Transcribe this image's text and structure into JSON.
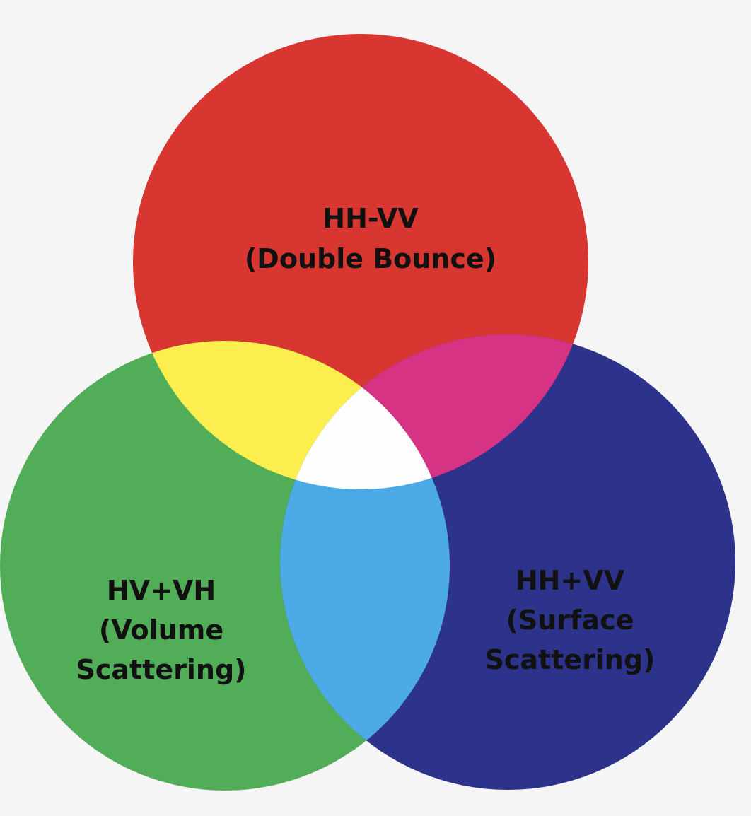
{
  "background_color": "#f5f5f5",
  "circles": {
    "top": {
      "color": "#d73631",
      "line1": "HH-VV",
      "line2": "(Double Bounce)",
      "line3": ""
    },
    "left": {
      "color": "#52ad59",
      "line1": "HV+VH",
      "line2": "(Volume",
      "line3": "Scattering)"
    },
    "right": {
      "color": "#2d338b",
      "line1": "HH+VV",
      "line2": "(Surface",
      "line3": "Scattering)"
    }
  },
  "overlaps": {
    "top_left": {
      "color": "#fbee4e"
    },
    "top_right": {
      "color": "#d63384"
    },
    "left_right": {
      "color": "#4cabe6"
    },
    "center": {
      "color": "#fefefe"
    }
  }
}
